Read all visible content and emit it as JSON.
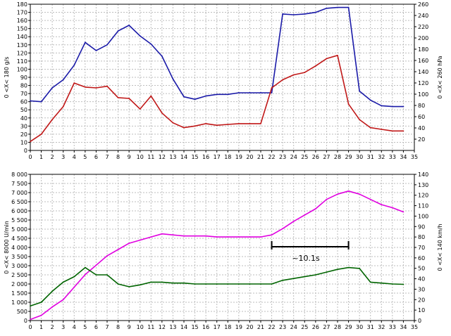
{
  "chart_data": [
    {
      "type": "line",
      "x": [
        0,
        1,
        2,
        3,
        4,
        5,
        6,
        7,
        8,
        9,
        10,
        11,
        12,
        13,
        14,
        15,
        16,
        17,
        18,
        19,
        20,
        21,
        22,
        23,
        24,
        25,
        26,
        27,
        28,
        29,
        30,
        31,
        32,
        33,
        34
      ],
      "xlim": [
        0,
        35
      ],
      "x_ticks": [
        "0",
        "1",
        "2",
        "3",
        "4",
        "5",
        "6",
        "7",
        "8",
        "9",
        "10",
        "11",
        "12",
        "13",
        "14",
        "15",
        "16",
        "17",
        "18",
        "19",
        "20",
        "21",
        "22",
        "23",
        "24",
        "25",
        "26",
        "27",
        "28",
        "29",
        "30",
        "31",
        "32",
        "33",
        "34",
        "35"
      ],
      "ylabel_left": "0 <X< 180 g/s",
      "ylim_left": [
        0,
        180
      ],
      "yticks_left": [
        "0",
        "10",
        "20",
        "30",
        "40",
        "50",
        "60",
        "70",
        "80",
        "90",
        "100",
        "110",
        "120",
        "130",
        "140",
        "150",
        "160",
        "170",
        "180"
      ],
      "ylabel_right": "0 <X< 260 hPa",
      "ylim_right": [
        0,
        260
      ],
      "yticks_right": [
        "20",
        "40",
        "60",
        "80",
        "100",
        "120",
        "140",
        "160",
        "180",
        "200",
        "220",
        "240",
        "260"
      ],
      "grid": true,
      "series": [
        {
          "axis": "left",
          "color": "#1a1aa8",
          "values": [
            61,
            60,
            77,
            87,
            105,
            133,
            123,
            130,
            147,
            154,
            141,
            131,
            116,
            88,
            66,
            63,
            67,
            69,
            69,
            71,
            71,
            71,
            71,
            168,
            167,
            168,
            170,
            175,
            176,
            176,
            73,
            62,
            55,
            54,
            54
          ]
        },
        {
          "axis": "left",
          "color": "#c01818",
          "values": [
            11,
            20,
            38,
            54,
            83,
            78,
            77,
            79,
            65,
            64,
            51,
            67,
            46,
            34,
            28,
            30,
            33,
            31,
            32,
            33,
            33,
            33,
            77,
            87,
            93,
            96,
            104,
            113,
            117,
            57,
            38,
            28,
            26,
            24,
            24
          ]
        }
      ]
    },
    {
      "type": "line",
      "x": [
        0,
        1,
        2,
        3,
        4,
        5,
        6,
        7,
        8,
        9,
        10,
        11,
        12,
        13,
        14,
        15,
        16,
        17,
        18,
        19,
        20,
        21,
        22,
        23,
        24,
        25,
        26,
        27,
        28,
        29,
        30,
        31,
        32,
        33,
        34
      ],
      "xlim": [
        0,
        35
      ],
      "x_ticks": [
        "0",
        "1",
        "2",
        "3",
        "4",
        "5",
        "6",
        "7",
        "8",
        "9",
        "10",
        "11",
        "12",
        "13",
        "14",
        "15",
        "16",
        "17",
        "18",
        "19",
        "20",
        "21",
        "22",
        "23",
        "24",
        "25",
        "26",
        "27",
        "28",
        "29",
        "30",
        "31",
        "32",
        "33",
        "34",
        "35"
      ],
      "ylabel_left": "0 <X< 8000 U/min",
      "ylim_left": [
        0,
        8000
      ],
      "yticks_left": [
        "0",
        "500",
        "1 000",
        "1 500",
        "2 000",
        "2 500",
        "3 000",
        "3 500",
        "4 000",
        "4 500",
        "5 000",
        "5 500",
        "6 000",
        "6 500",
        "7 000",
        "7 500",
        "8 000"
      ],
      "ylabel_right": "0 <X< 140 km/h",
      "ylim_right": [
        0,
        140
      ],
      "yticks_right": [
        "0",
        "10",
        "20",
        "30",
        "40",
        "50",
        "60",
        "70",
        "80",
        "90",
        "100",
        "110",
        "120",
        "130",
        "140"
      ],
      "grid": true,
      "annotation": "~10.1s",
      "annotation_span": [
        22,
        29
      ],
      "series": [
        {
          "axis": "right",
          "color": "#e000e0",
          "values": [
            1,
            5,
            13,
            20,
            32,
            44,
            53,
            62,
            68,
            74,
            77,
            80,
            83,
            82,
            81,
            81,
            81,
            80,
            80,
            80,
            80,
            80,
            82,
            88,
            95,
            101,
            107,
            116,
            121,
            124,
            121,
            116,
            111,
            108,
            104
          ]
        },
        {
          "axis": "left",
          "color": "#006400",
          "values": [
            800,
            1000,
            1600,
            2100,
            2400,
            2900,
            2500,
            2500,
            2000,
            1850,
            1950,
            2100,
            2100,
            2050,
            2050,
            2000,
            2000,
            2000,
            2000,
            2000,
            2000,
            2000,
            2000,
            2200,
            2300,
            2400,
            2500,
            2650,
            2800,
            2900,
            2850,
            2100,
            2050,
            2000,
            1980
          ]
        }
      ]
    }
  ]
}
